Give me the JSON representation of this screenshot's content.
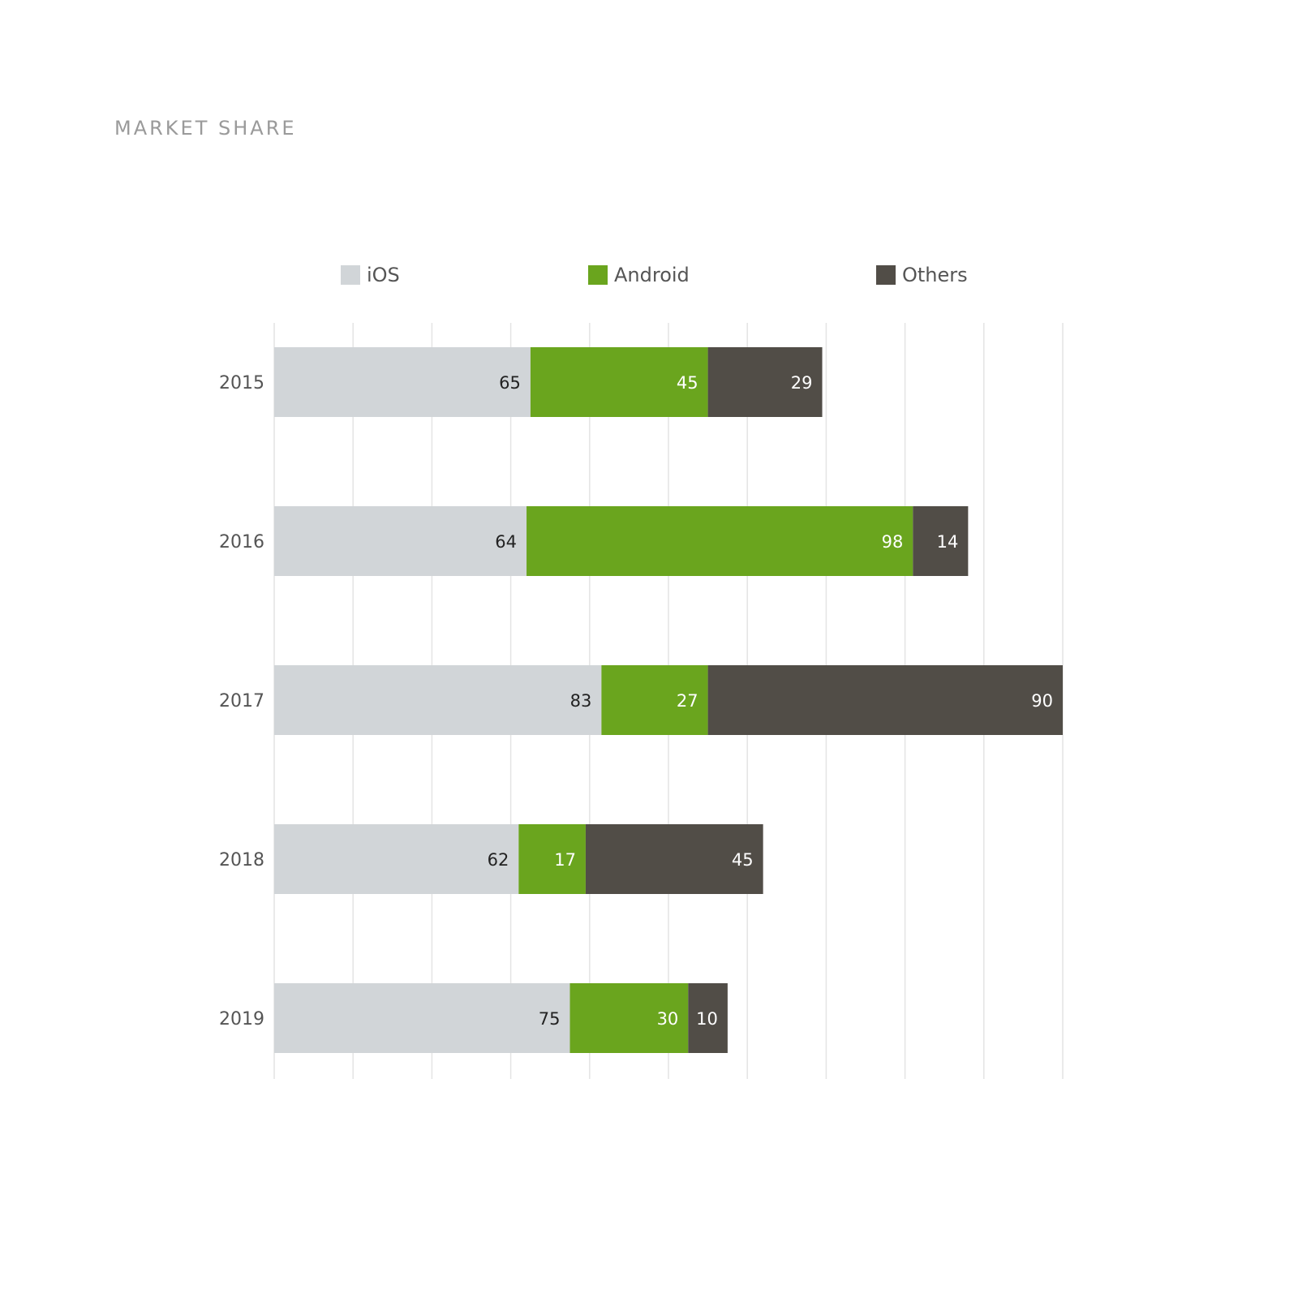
{
  "chart_data": {
    "type": "bar",
    "orientation": "horizontal",
    "stacked": true,
    "title": "MARKET SHARE",
    "categories": [
      "2015",
      "2016",
      "2017",
      "2018",
      "2019"
    ],
    "series": [
      {
        "name": "iOS",
        "values": [
          65,
          64,
          83,
          62,
          75
        ],
        "color": "#d1d5d8",
        "label_color": "#222222"
      },
      {
        "name": "Android",
        "values": [
          45,
          98,
          27,
          17,
          30
        ],
        "color": "#6aa51e",
        "label_color": "#ffffff"
      },
      {
        "name": "Others",
        "values": [
          29,
          14,
          90,
          45,
          10
        ],
        "color": "#514d47",
        "label_color": "#ffffff"
      }
    ],
    "xlim": [
      0,
      200
    ],
    "grid": true,
    "legend": "top"
  }
}
